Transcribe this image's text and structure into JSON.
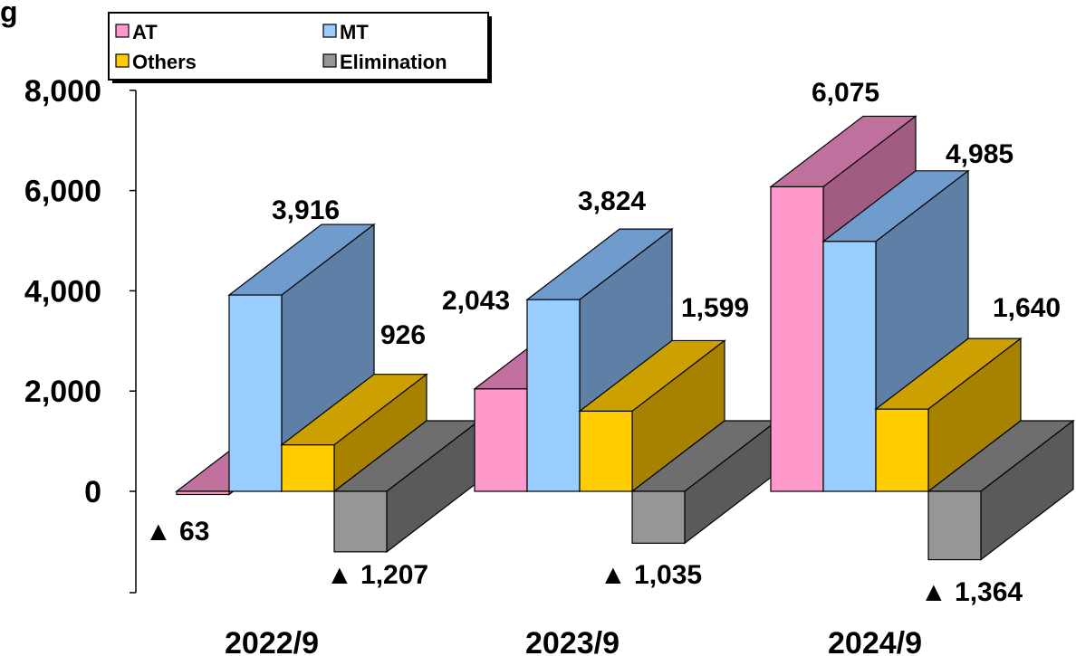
{
  "chart_data": {
    "type": "bar",
    "title_fragment": "g",
    "categories": [
      "2022/9",
      "2023/9",
      "2024/9"
    ],
    "series": [
      {
        "name": "AT",
        "values": [
          -63,
          2043,
          6075
        ],
        "labels": [
          "▲ 63",
          "2,043",
          "6,075"
        ]
      },
      {
        "name": "MT",
        "values": [
          3916,
          3824,
          4985
        ],
        "labels": [
          "3,916",
          "3,824",
          "4,985"
        ]
      },
      {
        "name": "Others",
        "values": [
          926,
          1599,
          1640
        ],
        "labels": [
          "926",
          "1,599",
          "1,640"
        ]
      },
      {
        "name": "Elimination",
        "values": [
          -1207,
          -1035,
          -1364
        ],
        "labels": [
          "▲ 1,207",
          "▲ 1,035",
          "▲ 1,364"
        ]
      }
    ],
    "y_ticks": [
      "8,000",
      "6,000",
      "4,000",
      "2,000",
      "0"
    ],
    "y_tick_values": [
      8000,
      6000,
      4000,
      2000,
      0
    ],
    "ylim": [
      -2000,
      8000
    ],
    "legend_position": "top-left",
    "three_d": true,
    "colors": {
      "AT": {
        "front": "#ff99cc",
        "top": "#c0709c",
        "side": "#a05c82"
      },
      "MT": {
        "front": "#99ccff",
        "top": "#6f9ccc",
        "side": "#5e7fa6"
      },
      "Others": {
        "front": "#ffcc00",
        "top": "#cca000",
        "side": "#a68200"
      },
      "Elimination": {
        "front": "#969696",
        "top": "#6e6e6e",
        "side": "#5a5a5a"
      }
    }
  }
}
